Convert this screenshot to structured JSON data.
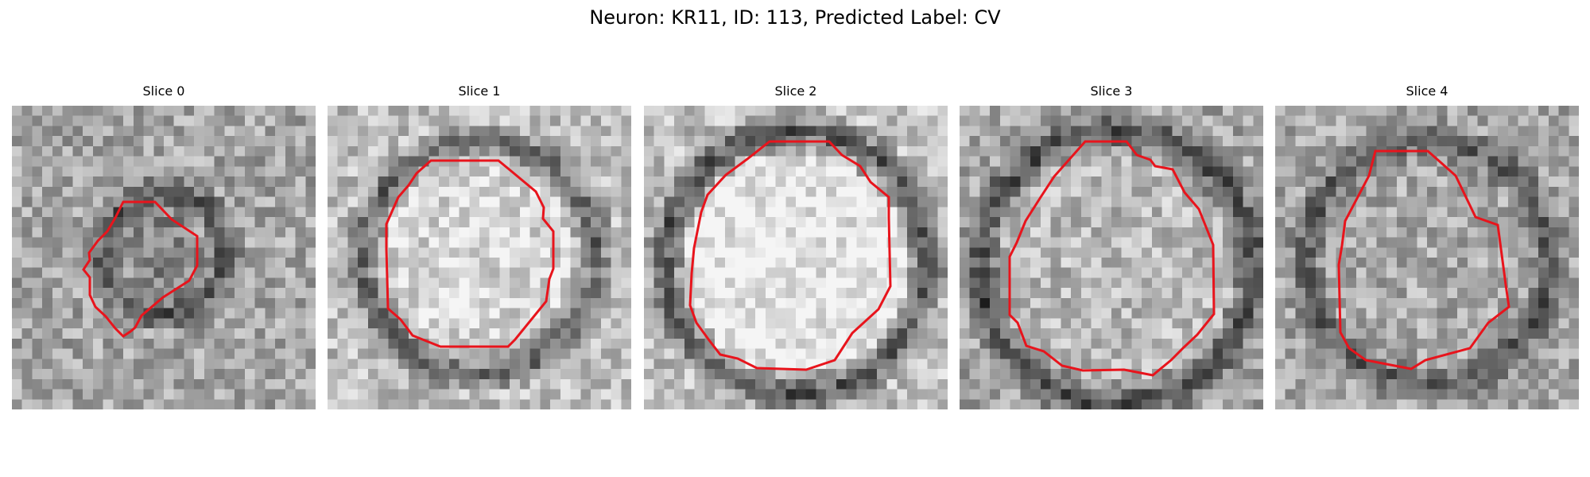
{
  "figure": {
    "title": "Neuron: KR11, ID: 113, Predicted Label: CV"
  },
  "colors": {
    "contour": "#e8141c",
    "background": "#ffffff"
  },
  "slices": [
    {
      "title": "Slice 0",
      "tone": "mixed"
    },
    {
      "title": "Slice 1",
      "tone": "light"
    },
    {
      "title": "Slice 2",
      "tone": "light"
    },
    {
      "title": "Slice 3",
      "tone": "mixed"
    },
    {
      "title": "Slice 4",
      "tone": "mixed"
    }
  ]
}
